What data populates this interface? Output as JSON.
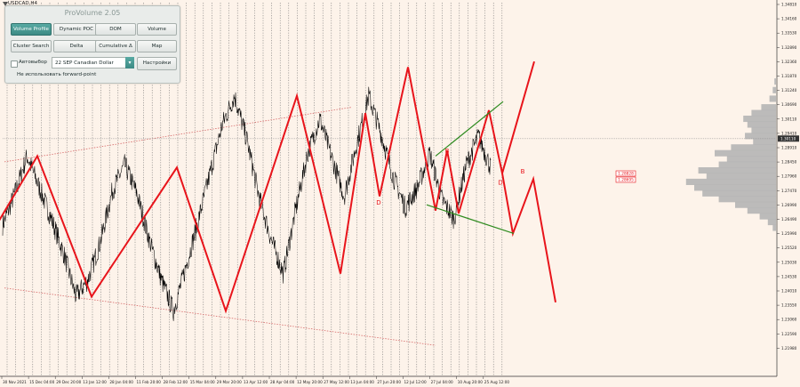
{
  "symbol": "USDCAD,H4",
  "panel": {
    "title": "ProVolume 2.05",
    "buttons": [
      {
        "label": "Volume Profile",
        "active": true
      },
      {
        "label": "Dynamic POC",
        "active": false
      },
      {
        "label": "DOM",
        "active": false
      },
      {
        "label": "Volume",
        "active": false
      },
      {
        "label": "Cluster Search",
        "active": false
      },
      {
        "label": "Delta",
        "active": false
      },
      {
        "label": "Cumulative Δ",
        "active": false
      },
      {
        "label": "Map",
        "active": false
      }
    ],
    "auto_label": "Автовыбор",
    "instrument": "22 SEP Canadian Dollar",
    "settings_label": "Настройки",
    "forward_point_label": "Не использовать forward-point"
  },
  "chart_data": {
    "type": "line",
    "title": "",
    "series": [
      {
        "values": [
          1.271,
          1.282,
          1.295,
          1.284,
          1.273,
          1.261,
          1.246,
          1.252,
          1.265,
          1.283,
          1.292,
          1.282,
          1.266,
          1.252,
          1.241,
          1.256,
          1.272,
          1.289,
          1.306,
          1.316,
          1.301,
          1.281,
          1.266,
          1.254,
          1.276,
          1.296,
          1.308,
          1.294,
          1.281,
          1.299,
          1.316,
          1.303,
          1.288,
          1.277,
          1.284,
          1.296,
          1.28,
          1.273,
          1.292,
          1.302,
          1.291
        ]
      }
    ],
    "wave_lines": [
      [
        [
          -2,
          1.272
        ],
        [
          42,
          1.295
        ],
        [
          103,
          1.246
        ],
        [
          199,
          1.291
        ],
        [
          254,
          1.241
        ],
        [
          334,
          1.316
        ],
        [
          383,
          1.254
        ],
        [
          411,
          1.31
        ],
        [
          427,
          1.281
        ],
        [
          459,
          1.326
        ],
        [
          490,
          1.276
        ],
        [
          503,
          1.297
        ],
        [
          516,
          1.275
        ],
        [
          550,
          1.311
        ],
        [
          565,
          1.289
        ],
        [
          601,
          1.328
        ]
      ],
      [
        [
          565,
          1.289
        ],
        [
          577,
          1.268
        ],
        [
          600,
          1.287
        ],
        [
          625,
          1.244
        ]
      ]
    ],
    "channel_lines": [
      [
        [
          490,
          1.295
        ],
        [
          566,
          1.314
        ]
      ],
      [
        [
          480,
          1.278
        ],
        [
          578,
          1.268
        ]
      ]
    ],
    "trend_lines": [
      [
        [
          5,
          1.293
        ],
        [
          395,
          1.312
        ]
      ],
      [
        [
          5,
          1.249
        ],
        [
          490,
          1.229
        ]
      ]
    ],
    "wave_labels": [
      {
        "x": 503,
        "y": 1.296,
        "text": "B"
      },
      {
        "x": 563,
        "y": 1.285,
        "text": "D"
      },
      {
        "x": 588,
        "y": 1.289,
        "text": "B"
      },
      {
        "x": 426,
        "y": 1.278,
        "text": "D"
      }
    ],
    "volume_profile": [
      [
        1.321,
        2
      ],
      [
        1.318,
        4
      ],
      [
        1.315,
        8
      ],
      [
        1.312,
        18
      ],
      [
        1.31,
        30
      ],
      [
        1.308,
        40
      ],
      [
        1.306,
        35
      ],
      [
        1.304,
        30
      ],
      [
        1.302,
        38
      ],
      [
        1.3,
        28
      ],
      [
        1.298,
        55
      ],
      [
        1.296,
        75
      ],
      [
        1.294,
        60
      ],
      [
        1.292,
        70
      ],
      [
        1.29,
        95
      ],
      [
        1.288,
        85
      ],
      [
        1.286,
        110
      ],
      [
        1.284,
        100
      ],
      [
        1.282,
        90
      ],
      [
        1.28,
        70
      ],
      [
        1.278,
        50
      ],
      [
        1.276,
        35
      ],
      [
        1.274,
        20
      ],
      [
        1.272,
        10
      ],
      [
        1.27,
        4
      ]
    ],
    "y_ticks": [
      "1.34810",
      "1.34160",
      "1.33530",
      "1.32890",
      "1.32360",
      "1.31870",
      "1.31240",
      "1.30690",
      "1.30110",
      "1.29410",
      "1.28910",
      "1.28450",
      "1.27960",
      "1.27470",
      "1.26990",
      "1.26490",
      "1.25990",
      "1.25520",
      "1.25030",
      "1.24530",
      "1.24010",
      "1.23550",
      "1.23060",
      "1.22590",
      "1.21980"
    ],
    "x_ticks": [
      "30 Nov 2021",
      "15 Dec 04:00",
      "29 Dec 20:00",
      "13 Jan 12:00",
      "28 Jan 04:00",
      "11 Feb 20:00",
      "28 Feb 12:00",
      "15 Mar 04:00",
      "29 Mar 20:00",
      "13 Apr 12:00",
      "28 Apr 04:00",
      "12 May 20:00",
      "27 May 12:00",
      "13 Jun 04:00",
      "27 Jun 20:00",
      "12 Jul 12:00",
      "27 Jul 04:00",
      "10 Aug 20:00",
      "25 Aug 12:00"
    ],
    "ylim": [
      1.2185,
      1.3485
    ],
    "current_price": "1.30110",
    "price_boxes": [
      "1.28828",
      "1.28695"
    ],
    "colors": {
      "wave": "#e8141b",
      "channel": "#2e8b1f",
      "trend": "#d66a6a",
      "price": "#000000",
      "profile": "#b5b5b5",
      "grid": "#6b6b6b"
    }
  }
}
